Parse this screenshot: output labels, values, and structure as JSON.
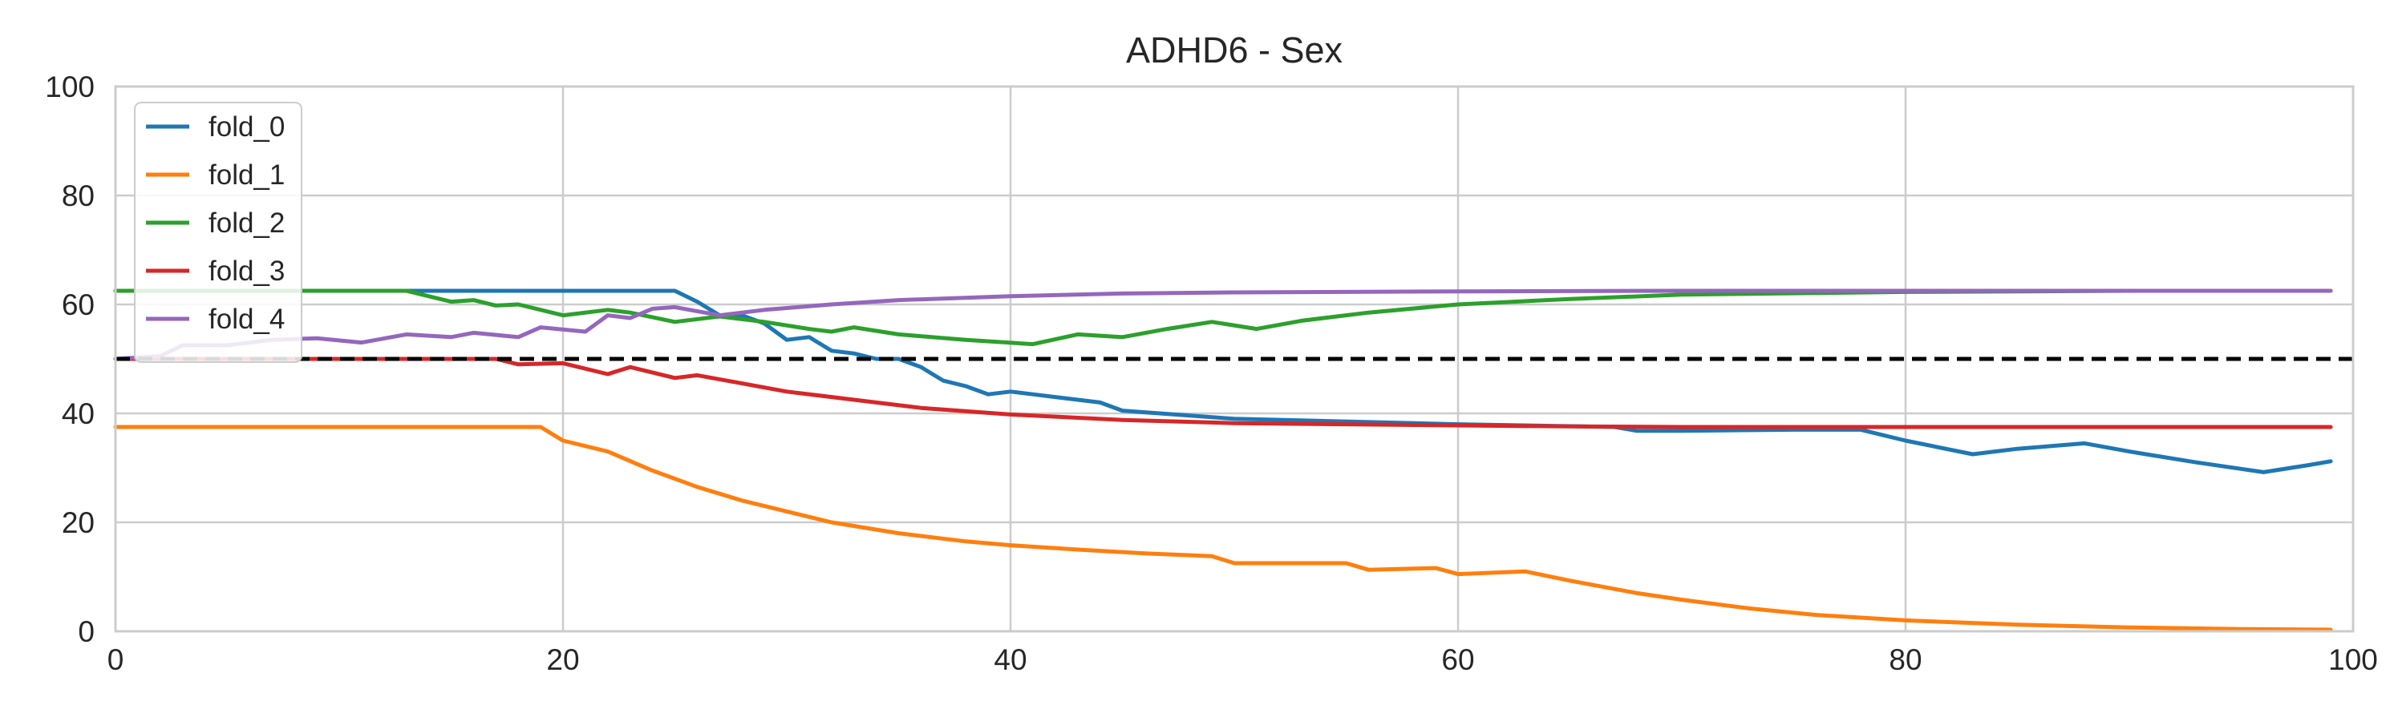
{
  "chart_data": {
    "type": "line",
    "title": "ADHD6 - Sex",
    "xlabel": "",
    "ylabel": "",
    "xlim": [
      0,
      100
    ],
    "ylim": [
      0,
      100
    ],
    "xticks": [
      "0",
      "20",
      "40",
      "60",
      "80",
      "100"
    ],
    "yticks": [
      "0",
      "20",
      "40",
      "60",
      "80",
      "100"
    ],
    "grid": true,
    "legend": "top-left",
    "reference_line": {
      "y": 50,
      "style": "dashed",
      "color": "#000000"
    },
    "series": [
      {
        "name": "fold_0",
        "color": "#1f77b4",
        "points": [
          [
            0,
            62.5
          ],
          [
            5,
            62.5
          ],
          [
            10,
            62.5
          ],
          [
            15,
            62.5
          ],
          [
            20,
            62.5
          ],
          [
            25,
            62.5
          ],
          [
            26,
            60.5
          ],
          [
            27,
            58
          ],
          [
            28,
            58
          ],
          [
            29,
            56.5
          ],
          [
            30,
            53.5
          ],
          [
            31,
            54
          ],
          [
            32,
            51.5
          ],
          [
            33,
            51
          ],
          [
            34,
            50
          ],
          [
            35,
            50
          ],
          [
            36,
            48.5
          ],
          [
            37,
            46
          ],
          [
            38,
            45
          ],
          [
            39,
            43.5
          ],
          [
            40,
            44
          ],
          [
            41,
            43.5
          ],
          [
            42,
            43
          ],
          [
            43,
            42.5
          ],
          [
            44,
            42
          ],
          [
            45,
            40.5
          ],
          [
            50,
            39
          ],
          [
            60,
            38
          ],
          [
            67,
            37.5
          ],
          [
            68,
            36.8
          ],
          [
            70,
            36.8
          ],
          [
            75,
            37
          ],
          [
            78,
            37
          ],
          [
            80,
            35
          ],
          [
            83,
            32.5
          ],
          [
            85,
            33.5
          ],
          [
            88,
            34.5
          ],
          [
            90,
            33
          ],
          [
            93,
            31
          ],
          [
            96,
            29.2
          ],
          [
            98,
            30.5
          ],
          [
            99,
            31.2
          ]
        ]
      },
      {
        "name": "fold_1",
        "color": "#ff7f0e",
        "points": [
          [
            0,
            37.5
          ],
          [
            10,
            37.5
          ],
          [
            19,
            37.5
          ],
          [
            20,
            35
          ],
          [
            22,
            33
          ],
          [
            24,
            29.5
          ],
          [
            26,
            26.5
          ],
          [
            28,
            24
          ],
          [
            30,
            22
          ],
          [
            32,
            20
          ],
          [
            35,
            18
          ],
          [
            38,
            16.5
          ],
          [
            40,
            15.8
          ],
          [
            43,
            15
          ],
          [
            46,
            14.3
          ],
          [
            49,
            13.8
          ],
          [
            50,
            12.5
          ],
          [
            55,
            12.5
          ],
          [
            56,
            11.3
          ],
          [
            59,
            11.6
          ],
          [
            60,
            10.5
          ],
          [
            63,
            11
          ],
          [
            65,
            9.3
          ],
          [
            68,
            7
          ],
          [
            70,
            5.8
          ],
          [
            73,
            4.2
          ],
          [
            76,
            3
          ],
          [
            80,
            2
          ],
          [
            85,
            1.2
          ],
          [
            90,
            0.7
          ],
          [
            95,
            0.4
          ],
          [
            99,
            0.3
          ]
        ]
      },
      {
        "name": "fold_2",
        "color": "#2ca02c",
        "points": [
          [
            0,
            62.5
          ],
          [
            12,
            62.5
          ],
          [
            13,
            62.5
          ],
          [
            15,
            60.5
          ],
          [
            16,
            60.8
          ],
          [
            17,
            59.8
          ],
          [
            18,
            60
          ],
          [
            20,
            58
          ],
          [
            22,
            59
          ],
          [
            23,
            58.5
          ],
          [
            25,
            56.8
          ],
          [
            27,
            57.8
          ],
          [
            29,
            56.8
          ],
          [
            31,
            55.5
          ],
          [
            32,
            55
          ],
          [
            33,
            55.8
          ],
          [
            35,
            54.5
          ],
          [
            38,
            53.5
          ],
          [
            41,
            52.7
          ],
          [
            43,
            54.5
          ],
          [
            45,
            54
          ],
          [
            47,
            55.5
          ],
          [
            49,
            56.8
          ],
          [
            51,
            55.5
          ],
          [
            53,
            57
          ],
          [
            56,
            58.5
          ],
          [
            60,
            60
          ],
          [
            65,
            61
          ],
          [
            70,
            61.8
          ],
          [
            80,
            62.3
          ],
          [
            90,
            62.5
          ],
          [
            99,
            62.5
          ]
        ]
      },
      {
        "name": "fold_3",
        "color": "#d62728",
        "points": [
          [
            0,
            50
          ],
          [
            10,
            50
          ],
          [
            17,
            50
          ],
          [
            18,
            49
          ],
          [
            20,
            49.2
          ],
          [
            22,
            47.2
          ],
          [
            23,
            48.5
          ],
          [
            25,
            46.5
          ],
          [
            26,
            47
          ],
          [
            28,
            45.5
          ],
          [
            30,
            44
          ],
          [
            33,
            42.5
          ],
          [
            36,
            41
          ],
          [
            40,
            39.8
          ],
          [
            45,
            38.8
          ],
          [
            50,
            38.2
          ],
          [
            55,
            38
          ],
          [
            60,
            37.8
          ],
          [
            65,
            37.6
          ],
          [
            70,
            37.5
          ],
          [
            80,
            37.5
          ],
          [
            90,
            37.5
          ],
          [
            99,
            37.5
          ]
        ]
      },
      {
        "name": "fold_4",
        "color": "#9467bd",
        "points": [
          [
            0,
            50
          ],
          [
            2,
            50.5
          ],
          [
            3,
            52.5
          ],
          [
            5,
            52.5
          ],
          [
            7,
            53.5
          ],
          [
            9,
            53.8
          ],
          [
            11,
            53
          ],
          [
            13,
            54.5
          ],
          [
            15,
            54
          ],
          [
            16,
            54.8
          ],
          [
            18,
            54
          ],
          [
            19,
            55.8
          ],
          [
            21,
            55
          ],
          [
            22,
            58
          ],
          [
            23,
            57.5
          ],
          [
            24,
            59.2
          ],
          [
            25,
            59.5
          ],
          [
            27,
            58
          ],
          [
            29,
            59
          ],
          [
            32,
            60
          ],
          [
            35,
            60.8
          ],
          [
            40,
            61.5
          ],
          [
            45,
            62
          ],
          [
            50,
            62.2
          ],
          [
            60,
            62.4
          ],
          [
            70,
            62.5
          ],
          [
            80,
            62.5
          ],
          [
            90,
            62.5
          ],
          [
            99,
            62.5
          ]
        ]
      }
    ]
  }
}
